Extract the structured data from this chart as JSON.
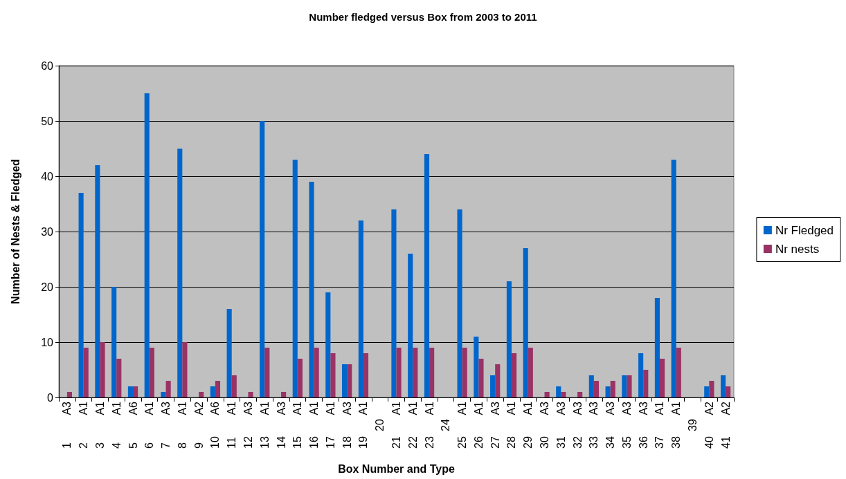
{
  "chart_data": {
    "type": "bar",
    "title": "Number fledged versus Box from 2003 to 2011",
    "xlabel": "Box Number and Type",
    "ylabel": "Number of Nests & Fledged",
    "categories": [
      "1 A3",
      "2 A1",
      "3 A1",
      "4 A1",
      "5 A6",
      "6 A1",
      "7 A3",
      "8 A1",
      "9 A2",
      "10 A6",
      "11 A1",
      "12 A3",
      "13 A1",
      "14 A3",
      "15 A1",
      "16 A1",
      "17 A1",
      "18 A3",
      "19 A1",
      "20",
      "21 A1",
      "22 A1",
      "23 A1",
      "24",
      "25 A1",
      "26 A1",
      "27 A3",
      "28 A1",
      "29 A1",
      "30 A3",
      "31 A3",
      "32 A3",
      "33 A3",
      "34 A3",
      "35 A3",
      "36 A3",
      "37 A1",
      "38 A1",
      "39",
      "40 A2",
      "41 A2"
    ],
    "series": [
      {
        "name": "Nr Fledged",
        "color": "#0066cc",
        "values": [
          0,
          37,
          42,
          20,
          2,
          55,
          1,
          45,
          0,
          2,
          16,
          0,
          50,
          0,
          43,
          39,
          19,
          6,
          32,
          0,
          34,
          26,
          44,
          0,
          34,
          11,
          4,
          21,
          27,
          0,
          2,
          0,
          4,
          2,
          4,
          8,
          18,
          43,
          0,
          2,
          4
        ]
      },
      {
        "name": "Nr nests",
        "color": "#993366",
        "values": [
          1,
          9,
          10,
          7,
          2,
          9,
          3,
          10,
          1,
          3,
          4,
          1,
          9,
          1,
          7,
          9,
          8,
          6,
          8,
          0,
          9,
          9,
          9,
          0,
          9,
          7,
          6,
          8,
          9,
          1,
          1,
          1,
          3,
          3,
          4,
          5,
          7,
          9,
          0,
          3,
          2
        ]
      }
    ],
    "ylim": [
      0,
      60
    ],
    "yticks": [
      0,
      10,
      20,
      30,
      40,
      50,
      60
    ],
    "grid": "y",
    "legend": "right"
  }
}
